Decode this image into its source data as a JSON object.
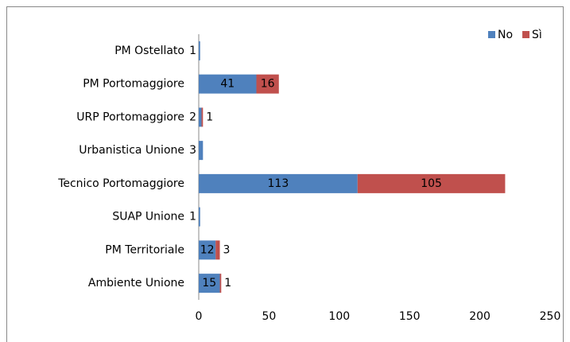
{
  "chart_data": {
    "type": "bar",
    "orientation": "horizontal",
    "stacked": true,
    "categories": [
      "PM Ostellato",
      "PM Portomaggiore",
      "URP Portomaggiore",
      "Urbanistica Unione",
      "Tecnico Portomaggiore",
      "SUAP Unione",
      "PM Territoriale",
      "Ambiente Unione"
    ],
    "series": [
      {
        "name": "No",
        "color": "#4f81bd",
        "values": [
          1,
          41,
          2,
          3,
          113,
          1,
          12,
          15
        ]
      },
      {
        "name": "Sì",
        "color": "#c0504d",
        "values": [
          null,
          16,
          1,
          null,
          105,
          null,
          3,
          1
        ]
      }
    ],
    "xlim": [
      0,
      250
    ],
    "xticks": [
      0,
      50,
      100,
      150,
      200,
      250
    ],
    "grid": false,
    "legend": "top-right"
  }
}
